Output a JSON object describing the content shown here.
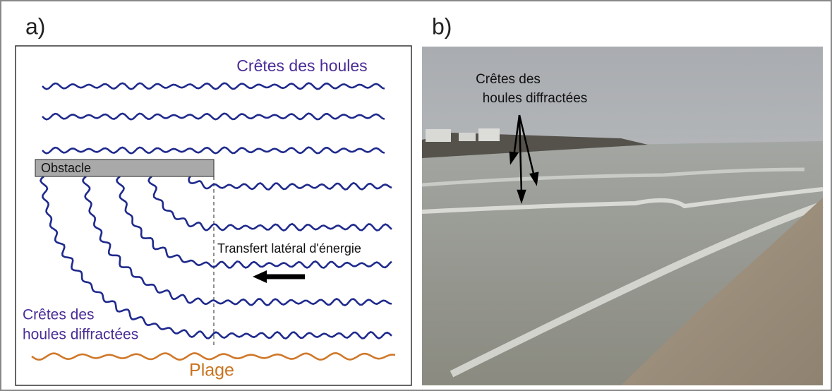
{
  "panel_a": {
    "label": "a)",
    "wave_label": "Crêtes des houles",
    "obstacle": "Obstacle",
    "transfer": "Transfert latéral d'énergie",
    "diffracted_label": [
      "Crêtes des",
      "houles diffractées"
    ],
    "beach": "Plage"
  },
  "panel_b": {
    "label": "b)",
    "diffracted_label": [
      "Crêtes des",
      "houles diffractées"
    ]
  }
}
